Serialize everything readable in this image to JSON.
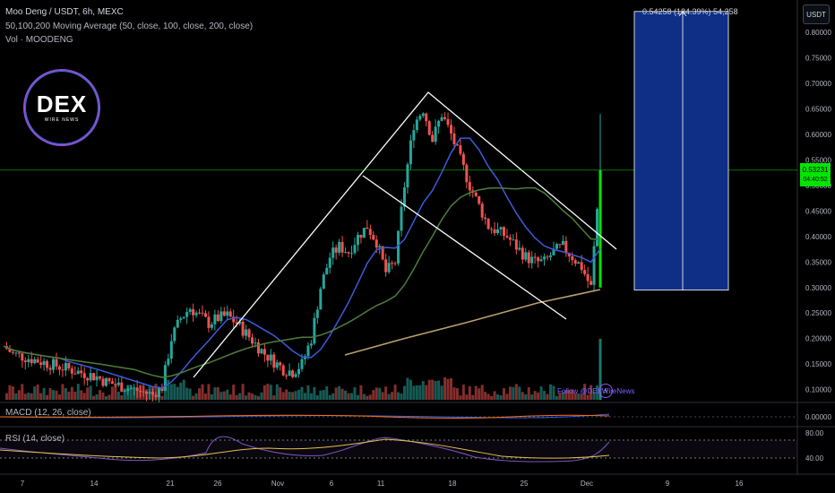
{
  "header": {
    "title": "Moo Deng / USDT, 6h, MEXC",
    "ma_legend": "50,100,200 Moving Average (50, close, 100, close, 200, close)",
    "vol_legend": "Vol · MOODENG"
  },
  "currency_button": "USDT",
  "logo": {
    "main": "DEX",
    "sub": "WIRE NEWS"
  },
  "watermark": "Follow @DEXWireNews",
  "projection": {
    "label": "0.54258 (184.39%) 54,258",
    "from": 0.295,
    "to": 0.841
  },
  "price_tag": {
    "price": "0.53231",
    "timer": "04:40:52"
  },
  "panes": {
    "macd_label": "MACD (12, 26, close)",
    "rsi_label": "RSI (14, close)"
  },
  "chart_data": {
    "type": "candlestick",
    "title": "Moo Deng / USDT, 6h, MEXC",
    "x_tick_labels": [
      "7",
      "14",
      "21",
      "26",
      "Nov",
      "6",
      "11",
      "18",
      "25",
      "Dec",
      "9",
      "16"
    ],
    "y_tick_labels": [
      "0.80000",
      "0.75000",
      "0.70000",
      "0.65000",
      "0.60000",
      "0.55000",
      "0.50000",
      "0.45000",
      "0.40000",
      "0.35000",
      "0.30000",
      "0.25000",
      "0.20000",
      "0.15000",
      "0.10000"
    ],
    "ylim": [
      0.08,
      0.86
    ],
    "close_series": [
      0.185,
      0.17,
      0.165,
      0.16,
      0.155,
      0.15,
      0.145,
      0.14,
      0.135,
      0.13,
      0.125,
      0.115,
      0.11,
      0.105,
      0.1,
      0.095,
      0.09,
      0.105,
      0.2,
      0.24,
      0.26,
      0.245,
      0.23,
      0.24,
      0.245,
      0.23,
      0.21,
      0.19,
      0.17,
      0.155,
      0.14,
      0.135,
      0.15,
      0.2,
      0.3,
      0.36,
      0.38,
      0.37,
      0.4,
      0.42,
      0.39,
      0.33,
      0.35,
      0.5,
      0.62,
      0.65,
      0.59,
      0.64,
      0.6,
      0.55,
      0.5,
      0.46,
      0.42,
      0.41,
      0.4,
      0.38,
      0.36,
      0.35,
      0.35,
      0.37,
      0.38,
      0.36,
      0.34,
      0.3,
      0.53
    ],
    "macd_value": "0.00000",
    "rsi_levels": [
      80,
      40
    ],
    "rsi_tick_labels": [
      "80.00",
      "40.00"
    ]
  },
  "colors": {
    "up": "#26a69a",
    "down": "#ef5350",
    "ma50": "#3b5bdb",
    "ma100": "#4e7d3a",
    "ma200": "#b9a06c",
    "projection_fill": "#0f2f86",
    "current_price": "#00e600"
  }
}
